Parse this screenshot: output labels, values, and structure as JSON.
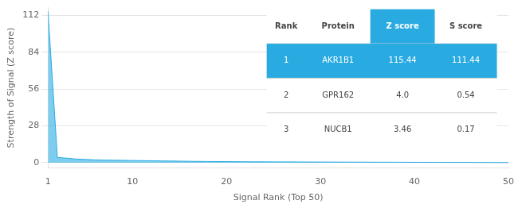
{
  "chart_data": {
    "type": "area",
    "xlabel": "Signal Rank (Top 50)",
    "ylabel": "Strength of Signal (Z score)",
    "x": [
      1,
      2,
      3,
      4,
      5,
      6,
      7,
      8,
      9,
      10,
      11,
      12,
      13,
      14,
      15,
      16,
      17,
      18,
      19,
      20,
      21,
      22,
      23,
      24,
      25,
      26,
      27,
      28,
      29,
      30,
      31,
      32,
      33,
      34,
      35,
      36,
      37,
      38,
      39,
      40,
      41,
      42,
      43,
      44,
      45,
      46,
      47,
      48,
      49,
      50
    ],
    "values": [
      115.44,
      4.0,
      3.46,
      2.8,
      2.5,
      2.2,
      2.0,
      1.9,
      1.8,
      1.7,
      1.6,
      1.5,
      1.4,
      1.3,
      1.2,
      1.1,
      1.0,
      0.95,
      0.9,
      0.85,
      0.8,
      0.75,
      0.7,
      0.68,
      0.65,
      0.62,
      0.6,
      0.58,
      0.55,
      0.52,
      0.5,
      0.48,
      0.46,
      0.44,
      0.42,
      0.4,
      0.38,
      0.36,
      0.34,
      0.32,
      0.3,
      0.28,
      0.26,
      0.24,
      0.22,
      0.2,
      0.18,
      0.16,
      0.14,
      0.12
    ],
    "color": "#29abe2",
    "xlim": [
      1,
      50
    ],
    "xticks": [
      1,
      10,
      20,
      30,
      40,
      50
    ],
    "ylim": [
      -4,
      118
    ],
    "yticks": [
      0,
      28,
      56,
      84,
      112
    ],
    "grid": true,
    "table": {
      "columns": [
        "Rank",
        "Protein",
        "Z score",
        "S score"
      ],
      "rows": [
        [
          "1",
          "AKR1B1",
          "115.44",
          "111.44"
        ],
        [
          "2",
          "GPR162",
          "4.0",
          "0.54"
        ],
        [
          "3",
          "NUCB1",
          "3.46",
          "0.17"
        ]
      ]
    }
  }
}
